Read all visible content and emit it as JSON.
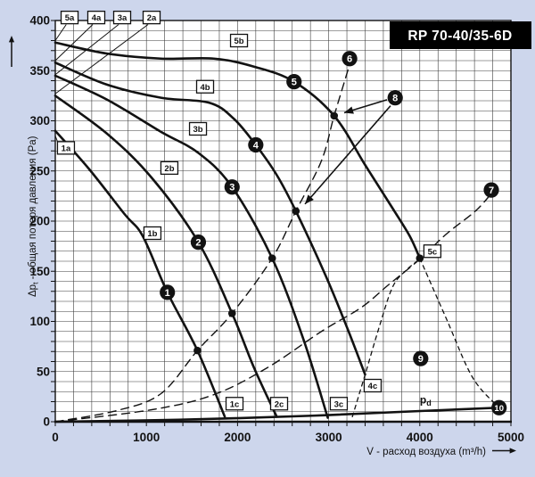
{
  "title": "RP 70-40/35-6D",
  "colors": {
    "background": "#cdd6ec",
    "plot_bg": "#ffffff",
    "grid": "#3d3d3d",
    "line": "#121212",
    "label_box_bg": "#ffffff",
    "title_bg": "#000000",
    "title_fg": "#ffffff"
  },
  "axes": {
    "x": {
      "label": "V - расход воздуха (m³/h)",
      "ticks": [
        "0",
        "1000",
        "2000",
        "3000",
        "4000",
        "5000"
      ],
      "min": 0,
      "max": 5000,
      "minor_step": 200
    },
    "y": {
      "label_prefix": "Δp",
      "label_sub": "t",
      "label_rest": " - общая потеря давления (Pa)",
      "ticks": [
        "0",
        "50",
        "100",
        "150",
        "200",
        "250",
        "300",
        "350",
        "400"
      ],
      "min": 0,
      "max": 400,
      "minor_step": 10
    }
  },
  "chart_data": {
    "type": "line",
    "title": "RP 70-40/35-6D",
    "xlabel": "V - расход воздуха (m³/h)",
    "ylabel": "Δpt - общая потеря давления (Pa)",
    "xlim": [
      0,
      5000
    ],
    "ylim": [
      0,
      400
    ],
    "grid": true,
    "series": [
      {
        "name": "fan-curve-1",
        "style": "solid",
        "points": [
          [
            0,
            290
          ],
          [
            370,
            252
          ],
          [
            760,
            207
          ],
          [
            960,
            185
          ],
          [
            1230,
            129
          ],
          [
            1560,
            71
          ],
          [
            1860,
            5
          ]
        ]
      },
      {
        "name": "fan-curve-2",
        "style": "solid",
        "points": [
          [
            0,
            325
          ],
          [
            570,
            287
          ],
          [
            1060,
            243
          ],
          [
            1570,
            179
          ],
          [
            1940,
            108
          ],
          [
            2180,
            54
          ],
          [
            2430,
            5
          ]
        ]
      },
      {
        "name": "fan-curve-3",
        "style": "solid",
        "points": [
          [
            0,
            345
          ],
          [
            570,
            321
          ],
          [
            1160,
            289
          ],
          [
            1570,
            268
          ],
          [
            1940,
            234
          ],
          [
            2380,
            163
          ],
          [
            2720,
            83
          ],
          [
            2990,
            4
          ]
        ]
      },
      {
        "name": "fan-curve-4",
        "style": "solid",
        "points": [
          [
            0,
            358
          ],
          [
            570,
            336
          ],
          [
            1160,
            323
          ],
          [
            1690,
            318
          ],
          [
            1960,
            302
          ],
          [
            2200,
            276
          ],
          [
            2430,
            246
          ],
          [
            2640,
            210
          ],
          [
            2970,
            145
          ],
          [
            3210,
            92
          ],
          [
            3400,
            47
          ]
        ]
      },
      {
        "name": "fan-curve-5",
        "style": "solid",
        "points": [
          [
            0,
            378
          ],
          [
            570,
            367
          ],
          [
            1160,
            362
          ],
          [
            1740,
            362
          ],
          [
            2180,
            354
          ],
          [
            2620,
            339
          ],
          [
            3060,
            305
          ],
          [
            3400,
            256
          ],
          [
            3700,
            213
          ],
          [
            3890,
            185
          ],
          [
            4000,
            163
          ]
        ]
      },
      {
        "name": "fan-curve-5-extension",
        "style": "dashed-short",
        "points": [
          [
            4000,
            163
          ],
          [
            4290,
            103
          ],
          [
            4580,
            44
          ],
          [
            4870,
            14
          ]
        ]
      },
      {
        "name": "system-curve-to-6",
        "style": "dashed",
        "points": [
          [
            0,
            0
          ],
          [
            670,
            11
          ],
          [
            1160,
            28
          ],
          [
            1560,
            71
          ],
          [
            1940,
            108
          ],
          [
            2380,
            163
          ],
          [
            2640,
            210
          ],
          [
            2920,
            260
          ],
          [
            3060,
            305
          ],
          [
            3230,
            356
          ]
        ]
      },
      {
        "name": "system-curve-to-7",
        "style": "dashed",
        "points": [
          [
            0,
            0
          ],
          [
            1060,
            12
          ],
          [
            1740,
            27
          ],
          [
            2330,
            54
          ],
          [
            2920,
            90
          ],
          [
            3360,
            114
          ],
          [
            3650,
            136
          ],
          [
            4000,
            162
          ],
          [
            4290,
            187
          ],
          [
            4610,
            210
          ],
          [
            4790,
            228
          ]
        ]
      },
      {
        "name": "range-boundary",
        "style": "dashed-short",
        "points": [
          [
            3260,
            5
          ],
          [
            3400,
            47
          ],
          [
            3550,
            93
          ],
          [
            3700,
            134
          ],
          [
            3850,
            151
          ],
          [
            4000,
            162
          ]
        ]
      },
      {
        "name": "dynamic-pressure-pd",
        "style": "solid",
        "points": [
          [
            0,
            0
          ],
          [
            1350,
            2
          ],
          [
            2820,
            6
          ],
          [
            4090,
            11
          ],
          [
            4870,
            14
          ]
        ]
      }
    ],
    "operating_points": [
      [
        1560,
        71
      ],
      [
        1940,
        108
      ],
      [
        2380,
        163
      ],
      [
        2640,
        210
      ],
      [
        3060,
        305
      ],
      [
        4000,
        163
      ]
    ]
  },
  "point_markers": [
    {
      "n": "1",
      "v": 1230,
      "p": 129
    },
    {
      "n": "2",
      "v": 1570,
      "p": 179
    },
    {
      "n": "3",
      "v": 1940,
      "p": 234
    },
    {
      "n": "4",
      "v": 2200,
      "p": 276
    },
    {
      "n": "5",
      "v": 2620,
      "p": 339
    },
    {
      "n": "6",
      "v": 3230,
      "p": 362
    },
    {
      "n": "7",
      "v": 4785,
      "p": 231
    },
    {
      "n": "8",
      "v": 3730,
      "p": 323
    },
    {
      "n": "9",
      "v": 4010,
      "p": 63
    },
    {
      "n": "10",
      "v": 4870,
      "p": 14
    }
  ],
  "curve_labels": [
    {
      "text": "5a",
      "v": 157,
      "p": 403
    },
    {
      "text": "4a",
      "v": 450,
      "p": 403
    },
    {
      "text": "3a",
      "v": 734,
      "p": 403
    },
    {
      "text": "2a",
      "v": 1057,
      "p": 403
    },
    {
      "text": "1a",
      "v": 117,
      "p": 273
    },
    {
      "text": "5b",
      "v": 2016,
      "p": 380
    },
    {
      "text": "4b",
      "v": 1644,
      "p": 334
    },
    {
      "text": "3b",
      "v": 1566,
      "p": 292
    },
    {
      "text": "2b",
      "v": 1252,
      "p": 253
    },
    {
      "text": "1b",
      "v": 1066,
      "p": 188
    },
    {
      "text": "1c",
      "v": 1967,
      "p": 18
    },
    {
      "text": "2c",
      "v": 2456,
      "p": 18
    },
    {
      "text": "3c",
      "v": 3111,
      "p": 18
    },
    {
      "text": "4c",
      "v": 3483,
      "p": 36
    },
    {
      "text": "5c",
      "v": 4138,
      "p": 170
    }
  ],
  "pd_label": {
    "prefix": "p",
    "sub": "d",
    "v": 4060,
    "p": 22
  },
  "leader_lines": [
    [
      [
        120,
        396
      ],
      [
        0,
        380
      ]
    ],
    [
      [
        411,
        396
      ],
      [
        0,
        360
      ]
    ],
    [
      [
        695,
        396
      ],
      [
        0,
        346
      ]
    ],
    [
      [
        1018,
        396
      ],
      [
        0,
        327
      ]
    ],
    [
      [
        78,
        267
      ],
      [
        0,
        285
      ]
    ]
  ],
  "arrows": [
    [
      [
        3640,
        321
      ],
      [
        3170,
        308
      ]
    ],
    [
      [
        3679,
        315
      ],
      [
        2740,
        217
      ]
    ]
  ]
}
